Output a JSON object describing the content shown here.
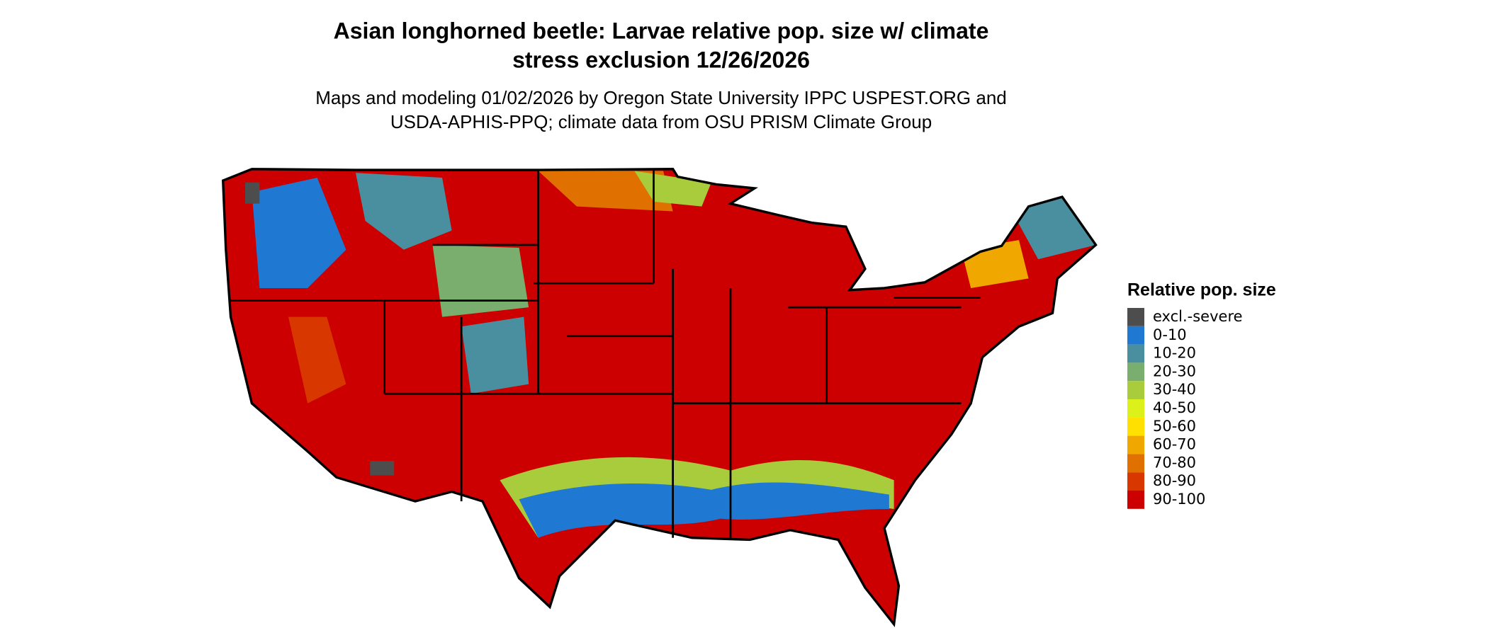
{
  "header": {
    "title_lines": [
      "Asian longhorned beetle: Larvae relative pop. size w/ climate",
      "stress exclusion 12/26/2026"
    ],
    "subtitle_lines": [
      "Maps and modeling 01/02/2026 by Oregon State University IPPC USPEST.ORG and",
      "USDA-APHIS-PPQ; climate data from OSU PRISM Climate Group"
    ]
  },
  "legend": {
    "title": "Relative pop. size",
    "items": [
      {
        "label": "excl.-severe",
        "color": "#4d4d4d"
      },
      {
        "label": "0-10",
        "color": "#1f78d1"
      },
      {
        "label": "10-20",
        "color": "#4a8fa0"
      },
      {
        "label": "20-30",
        "color": "#7aae6e"
      },
      {
        "label": "30-40",
        "color": "#a8cc3c"
      },
      {
        "label": "40-50",
        "color": "#dcf019"
      },
      {
        "label": "50-60",
        "color": "#ffe000"
      },
      {
        "label": "60-70",
        "color": "#f0a800"
      },
      {
        "label": "70-80",
        "color": "#e07000"
      },
      {
        "label": "80-90",
        "color": "#d83800"
      },
      {
        "label": "90-100",
        "color": "#cc0000"
      }
    ]
  }
}
